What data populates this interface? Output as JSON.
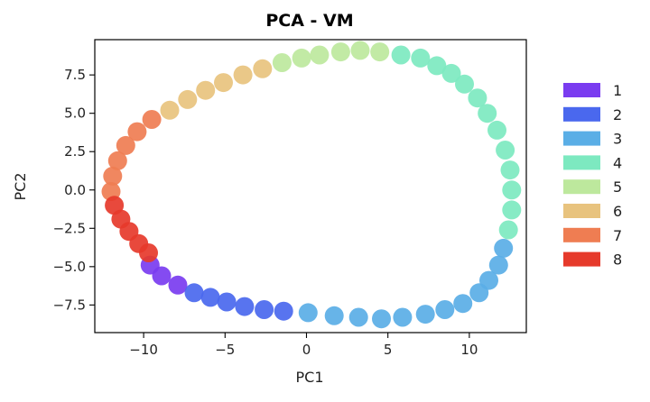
{
  "chart_data": {
    "type": "scatter",
    "title": "PCA - VM",
    "xlabel": "PC1",
    "ylabel": "PC2",
    "xlim": [
      -13.0,
      13.5
    ],
    "ylim": [
      -9.3,
      9.8
    ],
    "xticks": [
      -10,
      -5,
      0,
      5,
      10
    ],
    "xtick_labels": [
      "−10",
      "−5",
      "0",
      "5",
      "10"
    ],
    "yticks": [
      -7.5,
      -5.0,
      -2.5,
      0.0,
      2.5,
      5.0,
      7.5
    ],
    "ytick_labels": [
      "−7.5",
      "−5.0",
      "−2.5",
      "0.0",
      "2.5",
      "5.0",
      "7.5"
    ],
    "grid": false,
    "legend_position": "right",
    "series": [
      {
        "name": "1",
        "color": "#7a3cf0",
        "x": [
          -9.6,
          -8.9,
          -7.9
        ],
        "y": [
          -4.9,
          -5.6,
          -6.2
        ]
      },
      {
        "name": "2",
        "color": "#4a68ee",
        "x": [
          -6.9,
          -5.9,
          -4.9,
          -3.8,
          -2.6,
          -1.4
        ],
        "y": [
          -6.7,
          -7.0,
          -7.3,
          -7.6,
          -7.8,
          -7.9
        ]
      },
      {
        "name": "3",
        "color": "#5aaee6",
        "x": [
          0.1,
          1.7,
          3.2,
          4.6,
          5.9,
          7.3,
          8.5,
          9.6,
          10.6,
          11.2,
          11.8,
          12.1
        ],
        "y": [
          -8.0,
          -8.2,
          -8.3,
          -8.4,
          -8.3,
          -8.1,
          -7.8,
          -7.4,
          -6.7,
          -5.9,
          -4.9,
          -3.8
        ]
      },
      {
        "name": "4",
        "color": "#7de9c0",
        "x": [
          12.4,
          12.6,
          12.6,
          12.5,
          12.2,
          11.7,
          11.1,
          10.5,
          9.7,
          8.9,
          8.0,
          7.0,
          5.8
        ],
        "y": [
          -2.6,
          -1.3,
          0.0,
          1.3,
          2.6,
          3.9,
          5.0,
          6.0,
          6.9,
          7.6,
          8.1,
          8.6,
          8.8
        ]
      },
      {
        "name": "5",
        "color": "#bde89d",
        "x": [
          4.5,
          3.3,
          2.1,
          0.8,
          -0.3,
          -1.5
        ],
        "y": [
          9.0,
          9.1,
          9.0,
          8.8,
          8.6,
          8.3
        ]
      },
      {
        "name": "6",
        "color": "#e8c37e",
        "x": [
          -2.7,
          -3.9,
          -5.1,
          -6.2,
          -7.3,
          -8.4
        ],
        "y": [
          7.9,
          7.5,
          7.0,
          6.5,
          5.9,
          5.2
        ]
      },
      {
        "name": "7",
        "color": "#ef7d52",
        "x": [
          -9.5,
          -10.4,
          -11.1,
          -11.6,
          -11.9,
          -12.0
        ],
        "y": [
          4.6,
          3.8,
          2.9,
          1.9,
          0.9,
          -0.1
        ]
      },
      {
        "name": "8",
        "color": "#e63a2b",
        "x": [
          -11.8,
          -11.4,
          -10.9,
          -10.3,
          -9.7
        ],
        "y": [
          -1.0,
          -1.9,
          -2.7,
          -3.5,
          -4.1
        ]
      }
    ]
  }
}
